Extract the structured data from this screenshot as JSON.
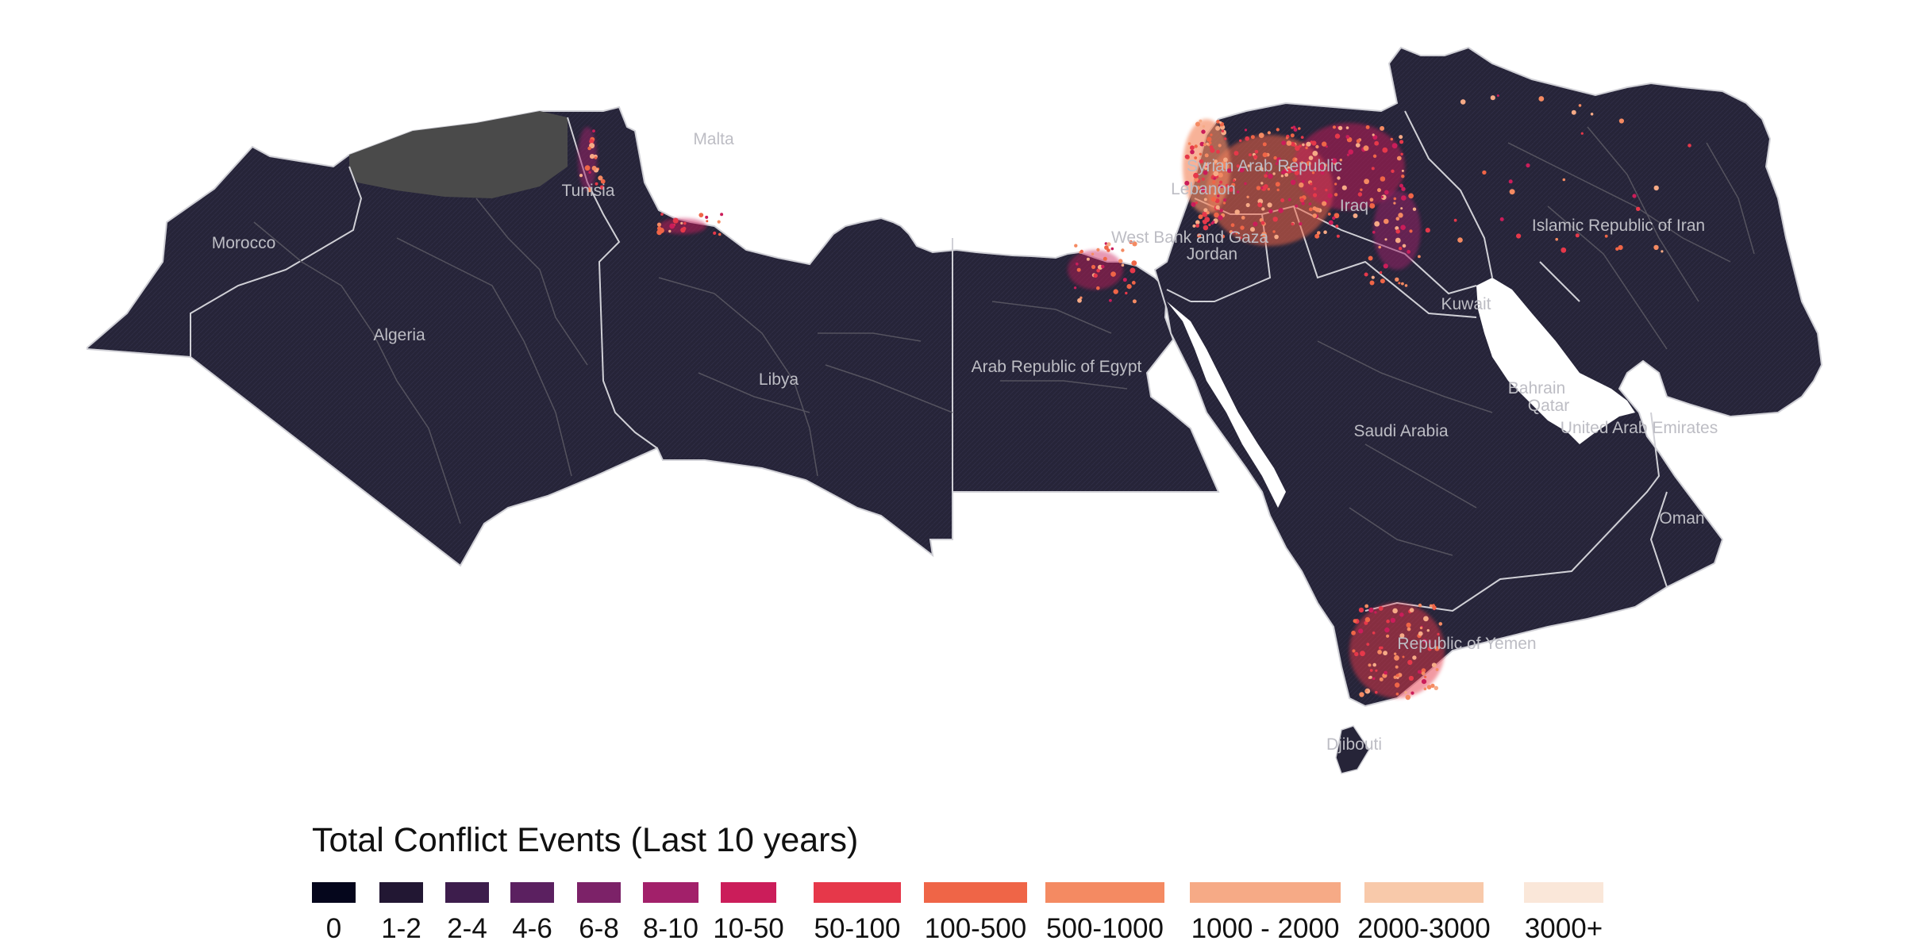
{
  "map": {
    "land_fill": "#262438",
    "border_color": "#55535f",
    "country_border_color": "#d0d0d6",
    "coast_color": "#4a4a4a",
    "countries": [
      {
        "id": "morocco",
        "label": "Morocco"
      },
      {
        "id": "algeria",
        "label": "Algeria"
      },
      {
        "id": "tunisia",
        "label": "Tunisia"
      },
      {
        "id": "malta",
        "label": "Malta"
      },
      {
        "id": "libya",
        "label": "Libya"
      },
      {
        "id": "egypt",
        "label": "Arab Republic of Egypt"
      },
      {
        "id": "west-bank-gaza",
        "label": "West Bank and Gaza"
      },
      {
        "id": "lebanon",
        "label": "Lebanon"
      },
      {
        "id": "syria",
        "label": "Syrian Arab Republic"
      },
      {
        "id": "jordan",
        "label": "Jordan"
      },
      {
        "id": "iraq",
        "label": "Iraq"
      },
      {
        "id": "iran",
        "label": "Islamic Republic of Iran"
      },
      {
        "id": "kuwait",
        "label": "Kuwait"
      },
      {
        "id": "bahrain",
        "label": "Bahrain"
      },
      {
        "id": "qatar",
        "label": "Qatar"
      },
      {
        "id": "uae",
        "label": "United Arab Emirates"
      },
      {
        "id": "saudi-arabia",
        "label": "Saudi Arabia"
      },
      {
        "id": "oman",
        "label": "Oman"
      },
      {
        "id": "yemen",
        "label": "Republic of Yemen"
      },
      {
        "id": "djibouti",
        "label": "Djibouti"
      }
    ]
  },
  "legend": {
    "title": "Total Conflict Events (Last 10 years)",
    "bins": [
      {
        "label": "0",
        "color": "#05061c"
      },
      {
        "label": "1-2",
        "color": "#221733"
      },
      {
        "label": "2-4",
        "color": "#3d1d4c"
      },
      {
        "label": "4-6",
        "color": "#5b2060"
      },
      {
        "label": "6-8",
        "color": "#7c2268"
      },
      {
        "label": "8-10",
        "color": "#a2206a"
      },
      {
        "label": "10-50",
        "color": "#cb1d5a"
      },
      {
        "label": "50-100",
        "color": "#e6384a"
      },
      {
        "label": "100-500",
        "color": "#ef6547"
      },
      {
        "label": "500-1000",
        "color": "#f48a62"
      },
      {
        "label": "1000 - 2000",
        "color": "#f6aa86"
      },
      {
        "label": "2000-3000",
        "color": "#f8c9aa"
      },
      {
        "label": "3000+",
        "color": "#fae7d9"
      }
    ]
  }
}
